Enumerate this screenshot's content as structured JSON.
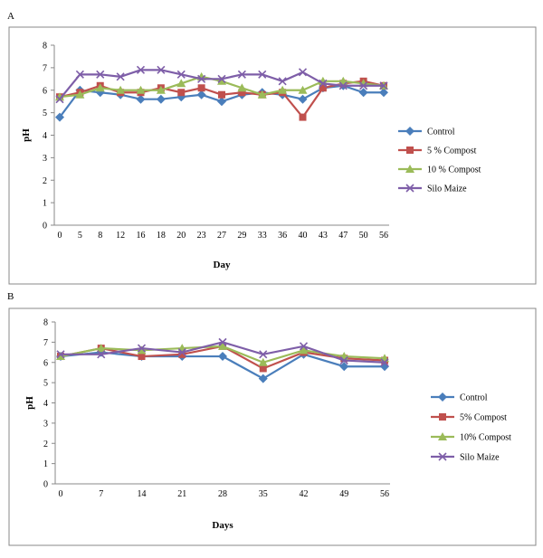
{
  "panels": [
    {
      "label": "A"
    },
    {
      "label": "B"
    }
  ],
  "chart_data": [
    {
      "type": "line",
      "x": [
        "0",
        "5",
        "8",
        "12",
        "16",
        "18",
        "20",
        "23",
        "27",
        "29",
        "33",
        "36",
        "40",
        "43",
        "47",
        "50",
        "56"
      ],
      "xlabel": "Day",
      "ylabel": "pH",
      "ylim": [
        0,
        8
      ],
      "yticks": [
        0,
        1,
        2,
        3,
        4,
        5,
        6,
        7,
        8
      ],
      "grid": false,
      "legend": "right",
      "series": [
        {
          "name": "Control",
          "color": "#4a7ebb",
          "marker": "diamond",
          "values": [
            4.8,
            6.0,
            5.9,
            5.8,
            5.6,
            5.6,
            5.7,
            5.8,
            5.5,
            5.8,
            5.9,
            5.8,
            5.6,
            6.1,
            6.2,
            5.9,
            5.9
          ]
        },
        {
          "name": "5 % Compost",
          "color": "#c0504d",
          "marker": "square",
          "values": [
            5.7,
            5.9,
            6.2,
            5.9,
            5.9,
            6.1,
            5.9,
            6.1,
            5.8,
            5.9,
            5.8,
            5.9,
            4.8,
            6.1,
            6.3,
            6.4,
            6.2
          ]
        },
        {
          "name": "10 % Compost",
          "color": "#9bbb59",
          "marker": "triangle",
          "values": [
            5.7,
            5.8,
            6.1,
            6.0,
            6.0,
            6.0,
            6.3,
            6.6,
            6.4,
            6.1,
            5.8,
            6.0,
            6.0,
            6.4,
            6.4,
            6.3,
            6.2
          ]
        },
        {
          "name": "Silo Maize",
          "color": "#7e5ea8",
          "marker": "x",
          "values": [
            5.6,
            6.7,
            6.7,
            6.6,
            6.9,
            6.9,
            6.7,
            6.5,
            6.5,
            6.7,
            6.7,
            6.4,
            6.8,
            6.3,
            6.2,
            6.2,
            6.2
          ]
        }
      ]
    },
    {
      "type": "line",
      "x": [
        "0",
        "7",
        "14",
        "21",
        "28",
        "35",
        "42",
        "49",
        "56"
      ],
      "xlabel": "Days",
      "ylabel": "pH",
      "ylim": [
        0,
        8
      ],
      "yticks": [
        0,
        1,
        2,
        3,
        4,
        5,
        6,
        7,
        8
      ],
      "grid": false,
      "legend": "right",
      "series": [
        {
          "name": "Control",
          "color": "#4a7ebb",
          "marker": "diamond",
          "values": [
            6.3,
            6.5,
            6.3,
            6.3,
            6.3,
            5.2,
            6.4,
            5.8,
            5.8
          ]
        },
        {
          "name": "5% Compost",
          "color": "#c0504d",
          "marker": "square",
          "values": [
            6.3,
            6.7,
            6.3,
            6.4,
            6.8,
            5.7,
            6.5,
            6.2,
            6.1
          ]
        },
        {
          "name": "10% Compost",
          "color": "#9bbb59",
          "marker": "triangle",
          "values": [
            6.3,
            6.7,
            6.6,
            6.7,
            6.8,
            6.0,
            6.6,
            6.3,
            6.2
          ]
        },
        {
          "name": "Silo Maize",
          "color": "#7e5ea8",
          "marker": "x",
          "values": [
            6.4,
            6.4,
            6.7,
            6.5,
            7.0,
            6.4,
            6.8,
            6.1,
            6.0
          ]
        }
      ]
    }
  ]
}
